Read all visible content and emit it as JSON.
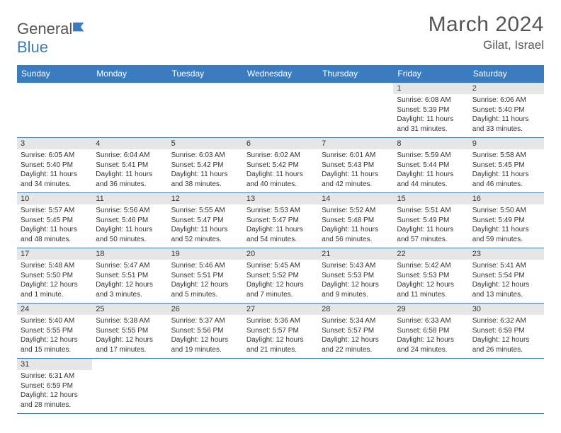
{
  "brand": {
    "name_general": "General",
    "name_blue": "Blue"
  },
  "title": "March 2024",
  "location": "Gilat, Israel",
  "colors": {
    "header_bg": "#3b7bbf",
    "daynum_bg": "#e6e6e6",
    "border": "#3b7bbf"
  },
  "weekdays": [
    "Sunday",
    "Monday",
    "Tuesday",
    "Wednesday",
    "Thursday",
    "Friday",
    "Saturday"
  ],
  "rows": [
    [
      null,
      null,
      null,
      null,
      null,
      {
        "n": "1",
        "sr": "6:08 AM",
        "ss": "5:39 PM",
        "dl": "11 hours and 31 minutes."
      },
      {
        "n": "2",
        "sr": "6:06 AM",
        "ss": "5:40 PM",
        "dl": "11 hours and 33 minutes."
      }
    ],
    [
      {
        "n": "3",
        "sr": "6:05 AM",
        "ss": "5:40 PM",
        "dl": "11 hours and 34 minutes."
      },
      {
        "n": "4",
        "sr": "6:04 AM",
        "ss": "5:41 PM",
        "dl": "11 hours and 36 minutes."
      },
      {
        "n": "5",
        "sr": "6:03 AM",
        "ss": "5:42 PM",
        "dl": "11 hours and 38 minutes."
      },
      {
        "n": "6",
        "sr": "6:02 AM",
        "ss": "5:42 PM",
        "dl": "11 hours and 40 minutes."
      },
      {
        "n": "7",
        "sr": "6:01 AM",
        "ss": "5:43 PM",
        "dl": "11 hours and 42 minutes."
      },
      {
        "n": "8",
        "sr": "5:59 AM",
        "ss": "5:44 PM",
        "dl": "11 hours and 44 minutes."
      },
      {
        "n": "9",
        "sr": "5:58 AM",
        "ss": "5:45 PM",
        "dl": "11 hours and 46 minutes."
      }
    ],
    [
      {
        "n": "10",
        "sr": "5:57 AM",
        "ss": "5:45 PM",
        "dl": "11 hours and 48 minutes."
      },
      {
        "n": "11",
        "sr": "5:56 AM",
        "ss": "5:46 PM",
        "dl": "11 hours and 50 minutes."
      },
      {
        "n": "12",
        "sr": "5:55 AM",
        "ss": "5:47 PM",
        "dl": "11 hours and 52 minutes."
      },
      {
        "n": "13",
        "sr": "5:53 AM",
        "ss": "5:47 PM",
        "dl": "11 hours and 54 minutes."
      },
      {
        "n": "14",
        "sr": "5:52 AM",
        "ss": "5:48 PM",
        "dl": "11 hours and 56 minutes."
      },
      {
        "n": "15",
        "sr": "5:51 AM",
        "ss": "5:49 PM",
        "dl": "11 hours and 57 minutes."
      },
      {
        "n": "16",
        "sr": "5:50 AM",
        "ss": "5:49 PM",
        "dl": "11 hours and 59 minutes."
      }
    ],
    [
      {
        "n": "17",
        "sr": "5:48 AM",
        "ss": "5:50 PM",
        "dl": "12 hours and 1 minute."
      },
      {
        "n": "18",
        "sr": "5:47 AM",
        "ss": "5:51 PM",
        "dl": "12 hours and 3 minutes."
      },
      {
        "n": "19",
        "sr": "5:46 AM",
        "ss": "5:51 PM",
        "dl": "12 hours and 5 minutes."
      },
      {
        "n": "20",
        "sr": "5:45 AM",
        "ss": "5:52 PM",
        "dl": "12 hours and 7 minutes."
      },
      {
        "n": "21",
        "sr": "5:43 AM",
        "ss": "5:53 PM",
        "dl": "12 hours and 9 minutes."
      },
      {
        "n": "22",
        "sr": "5:42 AM",
        "ss": "5:53 PM",
        "dl": "12 hours and 11 minutes."
      },
      {
        "n": "23",
        "sr": "5:41 AM",
        "ss": "5:54 PM",
        "dl": "12 hours and 13 minutes."
      }
    ],
    [
      {
        "n": "24",
        "sr": "5:40 AM",
        "ss": "5:55 PM",
        "dl": "12 hours and 15 minutes."
      },
      {
        "n": "25",
        "sr": "5:38 AM",
        "ss": "5:55 PM",
        "dl": "12 hours and 17 minutes."
      },
      {
        "n": "26",
        "sr": "5:37 AM",
        "ss": "5:56 PM",
        "dl": "12 hours and 19 minutes."
      },
      {
        "n": "27",
        "sr": "5:36 AM",
        "ss": "5:57 PM",
        "dl": "12 hours and 21 minutes."
      },
      {
        "n": "28",
        "sr": "5:34 AM",
        "ss": "5:57 PM",
        "dl": "12 hours and 22 minutes."
      },
      {
        "n": "29",
        "sr": "6:33 AM",
        "ss": "6:58 PM",
        "dl": "12 hours and 24 minutes."
      },
      {
        "n": "30",
        "sr": "6:32 AM",
        "ss": "6:59 PM",
        "dl": "12 hours and 26 minutes."
      }
    ],
    [
      {
        "n": "31",
        "sr": "6:31 AM",
        "ss": "6:59 PM",
        "dl": "12 hours and 28 minutes."
      },
      null,
      null,
      null,
      null,
      null,
      null
    ]
  ],
  "labels": {
    "sunrise": "Sunrise:",
    "sunset": "Sunset:",
    "daylight": "Daylight:"
  }
}
